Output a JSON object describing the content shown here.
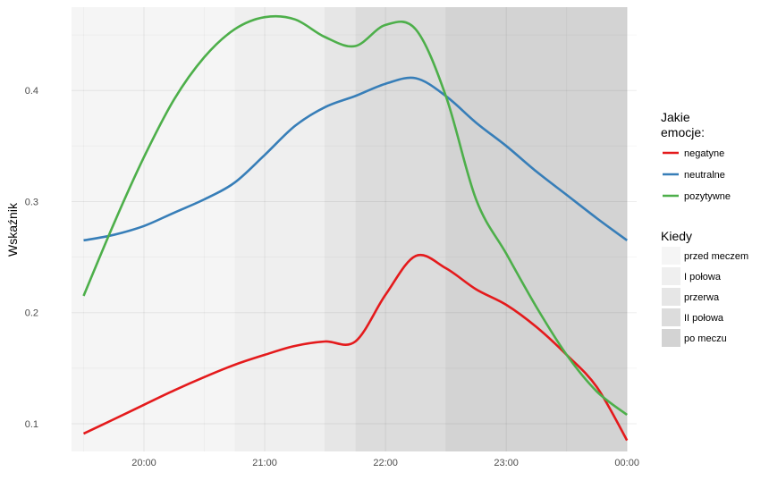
{
  "chart_data": {
    "type": "line",
    "ylabel": "Wskaźnik",
    "xlabel": "",
    "x_ticks": [
      "20:00",
      "21:00",
      "22:00",
      "23:00",
      "00:00"
    ],
    "y_ticks": [
      "0.1",
      "0.2",
      "0.3",
      "0.4"
    ],
    "ylim": [
      0.075,
      0.475
    ],
    "xlim_hours": [
      19.4,
      24.08
    ],
    "periods": [
      {
        "label": "przed meczem",
        "start": 19.4,
        "end": 20.75,
        "color": "#f5f5f5"
      },
      {
        "label": "I połowa",
        "start": 20.75,
        "end": 21.5,
        "color": "#efefef"
      },
      {
        "label": "przerwa",
        "start": 21.5,
        "end": 21.75,
        "color": "#e6e6e6"
      },
      {
        "label": "II połowa",
        "start": 21.75,
        "end": 22.5,
        "color": "#dcdcdc"
      },
      {
        "label": "po meczu",
        "start": 22.5,
        "end": 24.0,
        "color": "#d3d3d3"
      }
    ],
    "series": [
      {
        "name": "negatyne",
        "color": "#e41a1c",
        "x": [
          19.5,
          19.75,
          20.0,
          20.25,
          20.5,
          20.75,
          21.0,
          21.25,
          21.5,
          21.75,
          22.0,
          22.25,
          22.5,
          22.75,
          23.0,
          23.25,
          23.5,
          23.75,
          24.0
        ],
        "values": [
          0.091,
          0.104,
          0.117,
          0.13,
          0.142,
          0.153,
          0.162,
          0.17,
          0.174,
          0.174,
          0.216,
          0.251,
          0.24,
          0.221,
          0.207,
          0.187,
          0.162,
          0.133,
          0.085
        ]
      },
      {
        "name": "neutralne",
        "color": "#377eb8",
        "x": [
          19.5,
          19.75,
          20.0,
          20.25,
          20.5,
          20.75,
          21.0,
          21.25,
          21.5,
          21.75,
          22.0,
          22.25,
          22.5,
          22.75,
          23.0,
          23.25,
          23.5,
          23.75,
          24.0
        ],
        "values": [
          0.265,
          0.27,
          0.278,
          0.29,
          0.302,
          0.317,
          0.342,
          0.368,
          0.385,
          0.395,
          0.406,
          0.411,
          0.395,
          0.371,
          0.35,
          0.327,
          0.306,
          0.285,
          0.265
        ]
      },
      {
        "name": "pozytywne",
        "color": "#4daf4a",
        "x": [
          19.5,
          19.75,
          20.0,
          20.25,
          20.5,
          20.75,
          21.0,
          21.25,
          21.5,
          21.75,
          22.0,
          22.25,
          22.5,
          22.75,
          23.0,
          23.25,
          23.5,
          23.75,
          24.0
        ],
        "values": [
          0.215,
          0.28,
          0.34,
          0.392,
          0.43,
          0.455,
          0.466,
          0.464,
          0.448,
          0.44,
          0.459,
          0.455,
          0.395,
          0.302,
          0.253,
          0.205,
          0.162,
          0.129,
          0.108
        ]
      }
    ]
  },
  "legend_emotions": {
    "title_line1": "Jakie",
    "title_line2": "emocje:",
    "items": [
      "negatyne",
      "neutralne",
      "pozytywne"
    ]
  },
  "legend_periods": {
    "title": "Kiedy",
    "items": [
      "przed meczem",
      "I połowa",
      "przerwa",
      "II połowa",
      "po meczu"
    ]
  }
}
